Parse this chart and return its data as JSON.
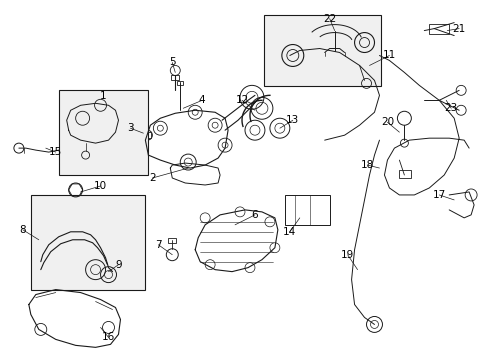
{
  "background_color": "#ffffff",
  "line_color": "#1a1a1a",
  "label_color": "#000000",
  "fig_width": 4.89,
  "fig_height": 3.6,
  "dpi": 100,
  "font_size": 7.5,
  "border_color": "#000000"
}
